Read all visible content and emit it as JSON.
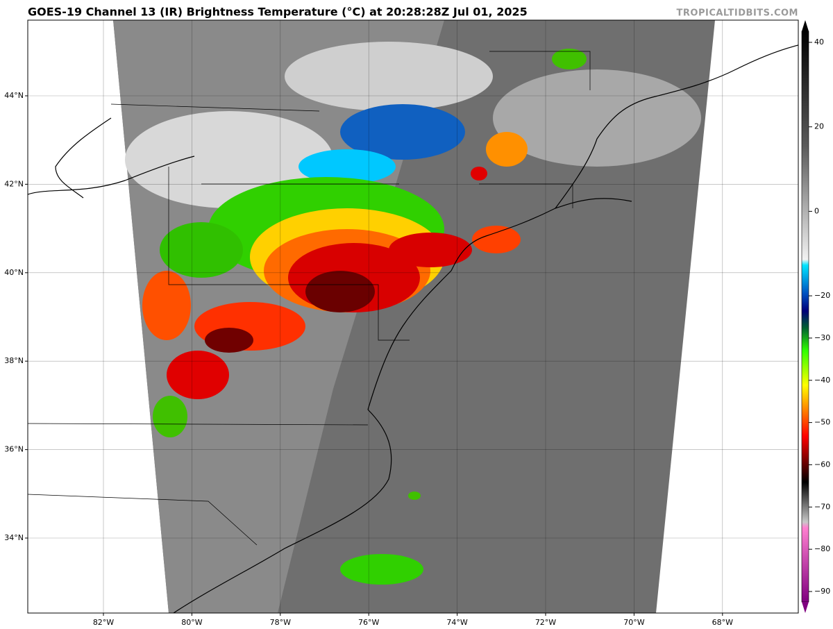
{
  "map": {
    "title": "GOES-19 Channel 13 (IR) Brightness Temperature (°C) at 20:28:28Z Jul 01, 2025",
    "credit": "TROPICALTIDBITS.COM",
    "lon_ticks": [
      {
        "value": -82,
        "label": "82°W"
      },
      {
        "value": -80,
        "label": "80°W"
      },
      {
        "value": -78,
        "label": "78°W"
      },
      {
        "value": -76,
        "label": "76°W"
      },
      {
        "value": -74,
        "label": "74°W"
      },
      {
        "value": -72,
        "label": "72°W"
      },
      {
        "value": -70,
        "label": "70°W"
      },
      {
        "value": -68,
        "label": "68°W"
      }
    ],
    "lat_ticks": [
      {
        "value": 44,
        "label": "44°N"
      },
      {
        "value": 42,
        "label": "42°N"
      },
      {
        "value": 40,
        "label": "40°N"
      },
      {
        "value": 38,
        "label": "38°N"
      },
      {
        "value": 36,
        "label": "36°N"
      },
      {
        "value": 34,
        "label": "34°N"
      }
    ],
    "colorbar": {
      "ticks": [
        40,
        20,
        0,
        {
          "value": -20,
          "label": "−20"
        },
        {
          "value": -30,
          "label": "−30"
        },
        {
          "value": -40,
          "label": "−40"
        },
        {
          "value": -50,
          "label": "−50"
        },
        {
          "value": -60,
          "label": "−60"
        },
        {
          "value": -70,
          "label": "−70"
        },
        {
          "value": -80,
          "label": "−80"
        },
        {
          "value": -90,
          "label": "−90"
        }
      ]
    }
  }
}
